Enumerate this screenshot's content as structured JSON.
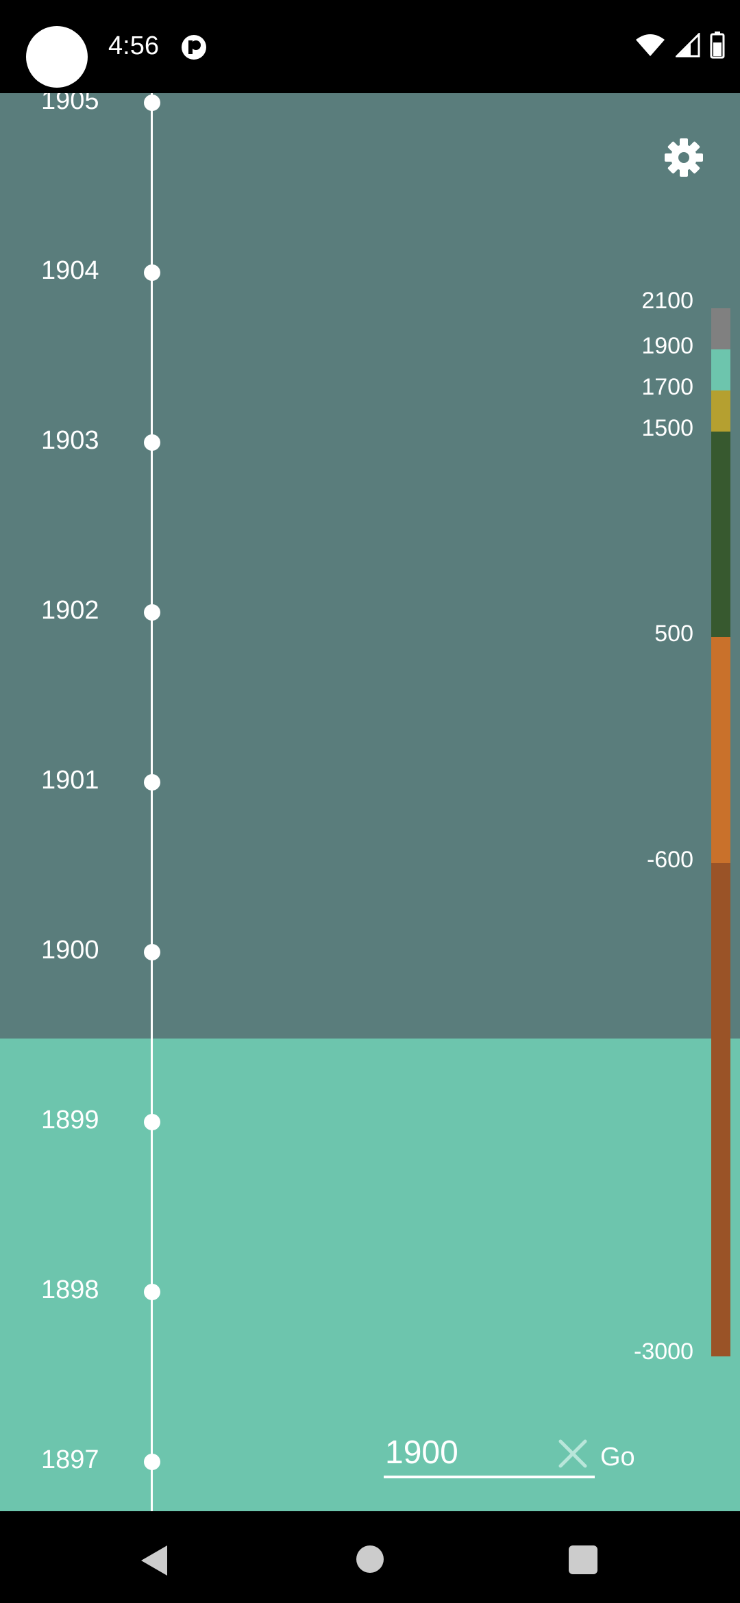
{
  "status_bar": {
    "time": "4:56"
  },
  "timeline": {
    "years": [
      "1905",
      "1904",
      "1903",
      "1902",
      "1901",
      "1900",
      "1899",
      "1898",
      "1897"
    ]
  },
  "scale": {
    "labels": [
      "2100",
      "1900",
      "1700",
      "1500",
      "500",
      "-600",
      "-3000"
    ],
    "colors": {
      "gray": "#808080",
      "teal": "#6dc5ad",
      "olive": "#b5a030",
      "darkgreen": "#37592f",
      "orange": "#c9712b",
      "brown": "#9a5327"
    }
  },
  "search": {
    "value": "1900",
    "go_label": "Go"
  },
  "colors": {
    "modern_band": "#5a7d7c",
    "recent_band": "#6dc5ad"
  }
}
